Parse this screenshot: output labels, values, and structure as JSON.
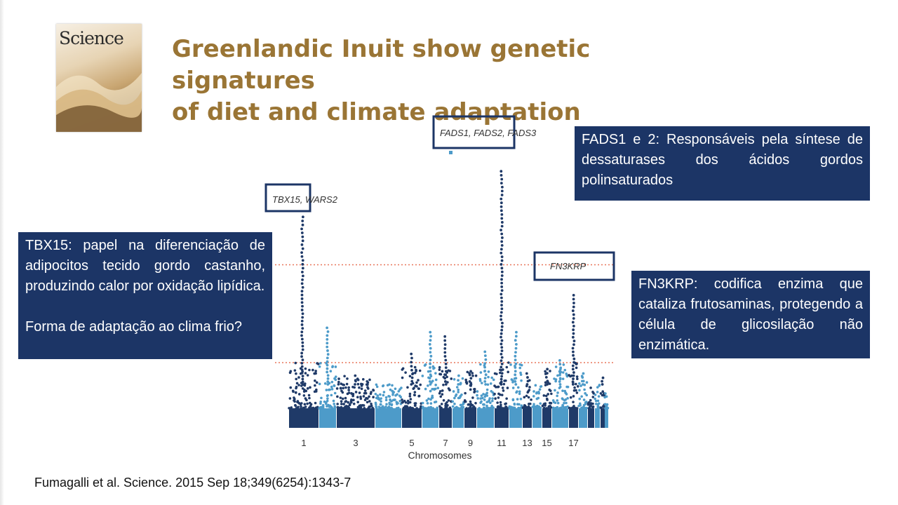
{
  "slide": {
    "title_lines": [
      "Greenlandic Inuit show genetic signatures",
      "of diet and climate adaptation"
    ],
    "journal_cover": {
      "journal_name": "Science",
      "colors": {
        "accent": "#c9a672"
      }
    },
    "boxes": {
      "fads": {
        "text": "FADS1 e 2: Responsáveis pela síntese de dessaturases dos ácidos gordos polinsaturados"
      },
      "tbx": {
        "text": "TBX15: papel na diferenciação  de adipocitos tecido gordo castanho, produzindo calor por oxidação lipídica.",
        "question": "Forma de adaptação ao clima frio?"
      },
      "fn3": {
        "text": "FN3KRP: codifica enzima que cataliza frutosaminas, protegendo a célula de glicosilação não enzimática."
      }
    },
    "citation": "Fumagalli et al. Science. 2015 Sep 18;349(6254):1343-7",
    "colors": {
      "title": "#9a7535",
      "box_fill": "#1c3566",
      "box_text": "#ffffff"
    }
  },
  "chart_data": {
    "type": "scatter",
    "subtype": "manhattan",
    "xlabel": "Chromosomes",
    "ylabel": "",
    "x_tick_labels": [
      "1",
      "3",
      "5",
      "7",
      "9",
      "11",
      "13",
      "15",
      "17"
    ],
    "chromosomes": [
      1,
      2,
      3,
      4,
      5,
      6,
      7,
      8,
      9,
      10,
      11,
      12,
      13,
      14,
      15,
      16,
      17,
      18,
      19,
      20,
      21,
      22
    ],
    "score_range": [
      0,
      1
    ],
    "thresholds": [
      0.3,
      0.75
    ],
    "threshold_color": "#e8765a",
    "colors": {
      "odd_chromosomes": "#1f3a68",
      "even_chromosomes": "#4d9bc9"
    },
    "peaks": [
      {
        "chromosome": 1,
        "peak_score": 0.97,
        "label": "TBX15, WARS2",
        "boxed": true
      },
      {
        "chromosome": 11,
        "peak_score": 1.18,
        "label": "FADS1, FADS2, FADS3",
        "boxed": true
      },
      {
        "chromosome": 17,
        "peak_score": 0.61,
        "label": "FN3KRP",
        "boxed": true
      }
    ],
    "per_chromosome_max_scores": [
      0.97,
      0.46,
      0.24,
      0.2,
      0.34,
      0.44,
      0.42,
      0.24,
      0.26,
      0.35,
      1.18,
      0.44,
      0.25,
      0.2,
      0.27,
      0.31,
      0.61,
      0.25,
      0.2,
      0.2,
      0.23,
      0.17
    ]
  }
}
